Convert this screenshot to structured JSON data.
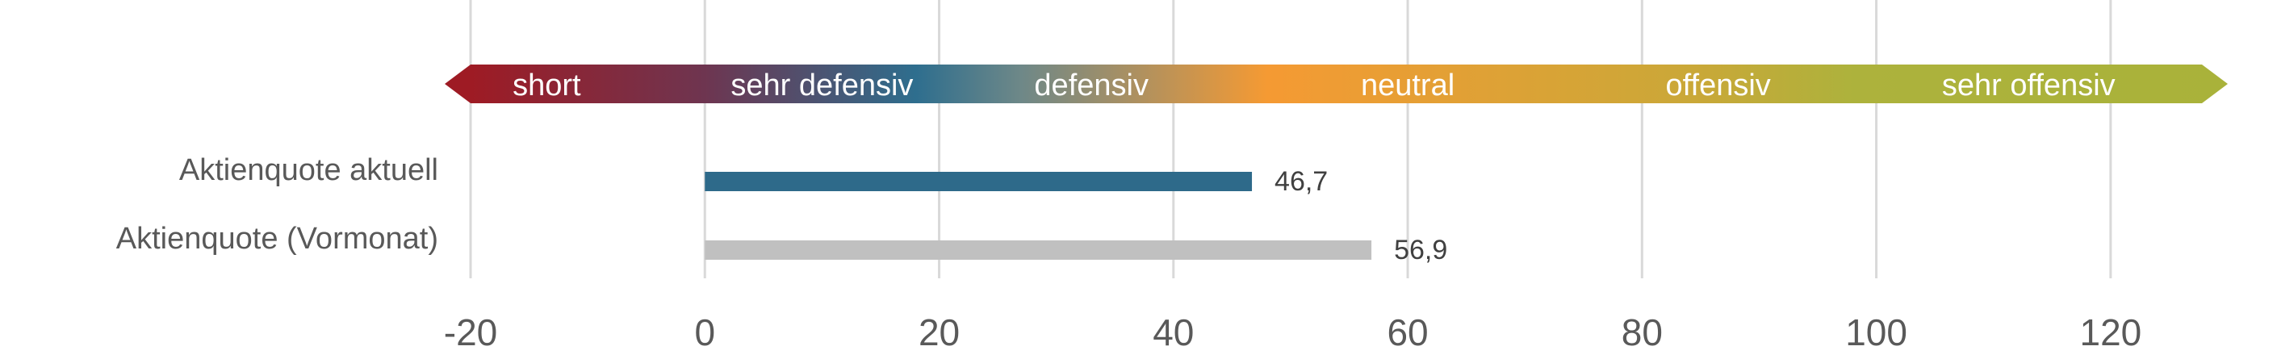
{
  "chart_data": {
    "type": "bar",
    "orientation": "horizontal",
    "categories": [
      "Aktienquote aktuell",
      "Aktienquote (Vormonat)"
    ],
    "series": [
      {
        "values": [
          46.7,
          56.9
        ],
        "colors": [
          "#2E6A8A",
          "#C0C0C0"
        ]
      }
    ],
    "data_labels": [
      "46,7",
      "56,9"
    ],
    "xlim": [
      -20,
      130
    ],
    "x_ticks": [
      -20,
      0,
      20,
      40,
      60,
      80,
      100,
      120
    ],
    "x_tick_labels": [
      "-20",
      "0",
      "20",
      "40",
      "60",
      "80",
      "100",
      "120"
    ],
    "grid": true,
    "legend": "none",
    "scale_band": {
      "range": [
        -20,
        130
      ],
      "segments": [
        {
          "label": "short",
          "center": -13.5
        },
        {
          "label": "sehr defensiv",
          "center": 10
        },
        {
          "label": "defensiv",
          "center": 33
        },
        {
          "label": "neutral",
          "center": 60
        },
        {
          "label": "offensiv",
          "center": 86.5
        },
        {
          "label": "sehr offensiv",
          "center": 113
        }
      ],
      "gradient_stops": [
        {
          "value": -20,
          "color": "#9E1B24"
        },
        {
          "value": 0,
          "color": "#6E3550"
        },
        {
          "value": 18,
          "color": "#2E6E8E"
        },
        {
          "value": 27,
          "color": "#6E8888"
        },
        {
          "value": 48,
          "color": "#F59A33"
        },
        {
          "value": 85,
          "color": "#C9A838"
        },
        {
          "value": 98,
          "color": "#ADB23C"
        },
        {
          "value": 130,
          "color": "#A9B23A"
        }
      ]
    }
  }
}
